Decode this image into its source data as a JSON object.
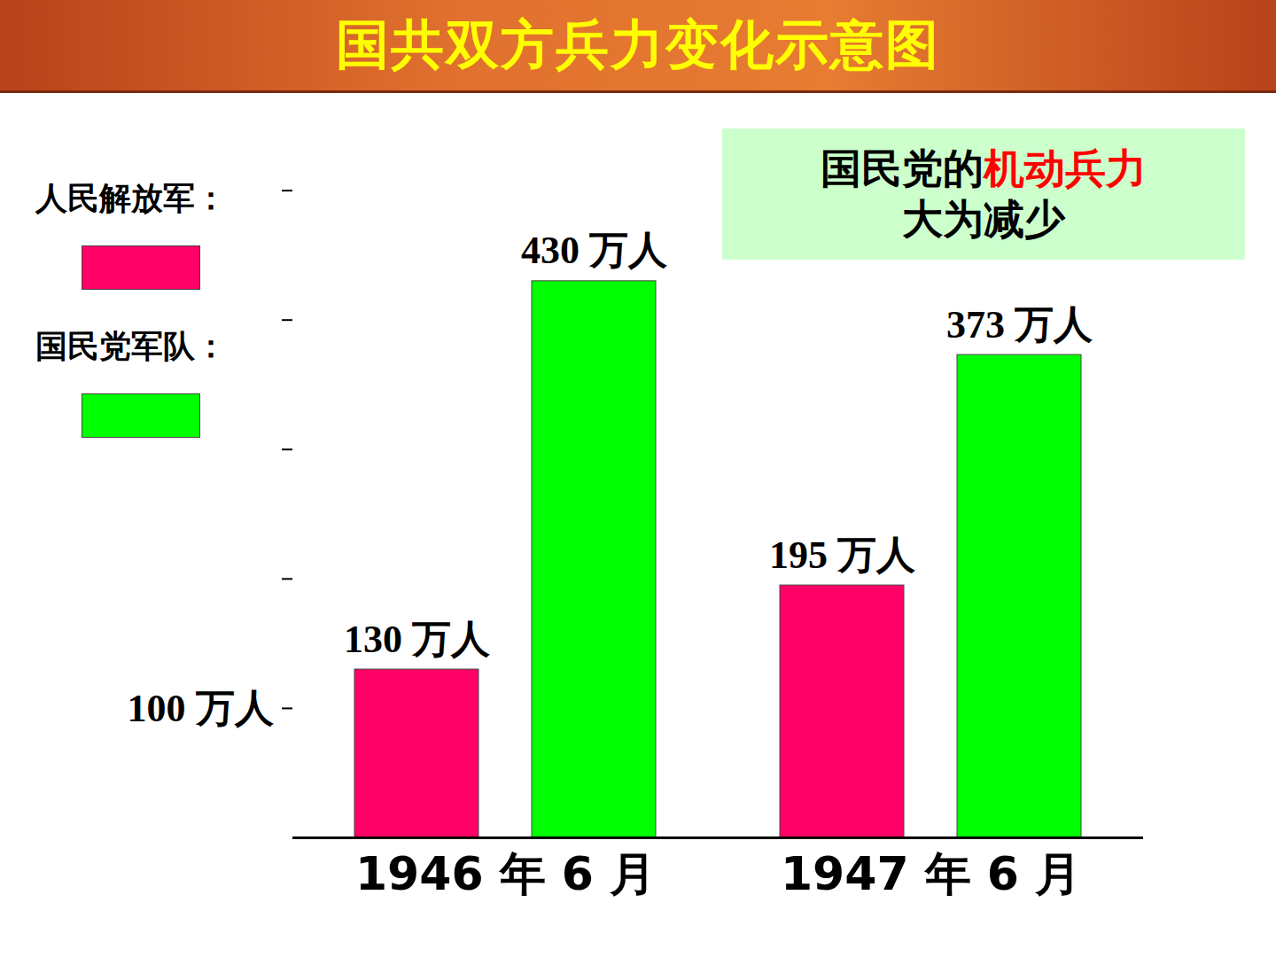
{
  "chart_data": {
    "type": "bar",
    "title": "国共双方兵力变化示意图",
    "categories": [
      "1946 年 6 月",
      "1947 年 6 月"
    ],
    "series": [
      {
        "name": "人民解放军：",
        "color": "#ff0066",
        "values": [
          130,
          195
        ],
        "value_labels": [
          "130 万人",
          "195 万人"
        ]
      },
      {
        "name": "国民党军队：",
        "color": "#00ff00",
        "values": [
          430,
          373
        ],
        "value_labels": [
          "430 万人",
          "373 万人"
        ]
      }
    ],
    "ylim": [
      0,
      510
    ],
    "yticks": [
      {
        "value": 100,
        "label": "100 万人"
      },
      {
        "value": 200,
        "label": null
      },
      {
        "value": 300,
        "label": null
      },
      {
        "value": 400,
        "label": null
      },
      {
        "value": 500,
        "label": null
      }
    ],
    "data_labels": true,
    "legend": "left",
    "annotation": {
      "text": "国民党的机动兵力大为减少",
      "highlight": "机动兵力",
      "highlight_color": "#ff0000"
    }
  }
}
